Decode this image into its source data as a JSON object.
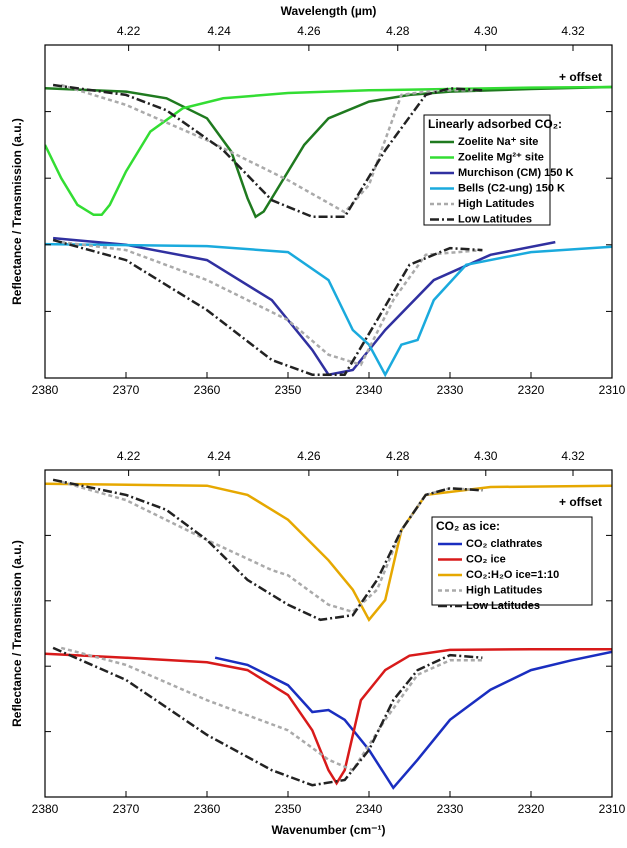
{
  "chart_data": [
    {
      "type": "line",
      "x2label": "Wavelength (µm)",
      "xlabel": null,
      "ylabel": "Reflectance / Transmission (a.u.)",
      "annotation": "+ offset",
      "legend_title": "Linearly adsorbed CO₂:",
      "xlim": [
        2380,
        2310
      ],
      "xticks": [
        2380,
        2370,
        2360,
        2350,
        2340,
        2330,
        2320,
        2310
      ],
      "x2lim": [
        4.2017,
        4.329
      ],
      "x2scale": "reciprocal",
      "x2ticks": [
        4.22,
        4.24,
        4.26,
        4.28,
        {
          "value": 4.3,
          "label": "4.30"
        },
        4.32
      ],
      "ylim": [
        0,
        5
      ],
      "yticks": [
        0,
        1,
        2,
        3,
        4
      ],
      "series": [
        {
          "name": "Zoelite Na⁺ site",
          "color": "#1f7a1f",
          "style": "solid",
          "x": [
            2380,
            2370,
            2365,
            2360,
            2357,
            2355,
            2354,
            2353,
            2351,
            2348,
            2345,
            2340,
            2335,
            2330,
            2320,
            2310
          ],
          "values": [
            4.35,
            4.3,
            4.2,
            3.9,
            3.4,
            2.7,
            2.42,
            2.5,
            2.9,
            3.5,
            3.9,
            4.15,
            4.25,
            4.3,
            4.34,
            4.37
          ]
        },
        {
          "name": "Zoelite Mg²⁺ site",
          "color": "#33dd33",
          "style": "solid",
          "x": [
            2380,
            2378,
            2376,
            2374,
            2373,
            2372,
            2370,
            2367,
            2363,
            2358,
            2350,
            2340,
            2330,
            2320,
            2310
          ],
          "values": [
            3.5,
            3.0,
            2.6,
            2.45,
            2.45,
            2.6,
            3.1,
            3.7,
            4.05,
            4.2,
            4.28,
            4.32,
            4.34,
            4.36,
            4.37
          ]
        },
        {
          "name": "Murchison (CM) 150 K",
          "color": "#3030a0",
          "style": "solid",
          "x": [
            2379,
            2370,
            2360,
            2352,
            2347,
            2345,
            2342,
            2338,
            2332,
            2325,
            2317
          ],
          "values": [
            2.1,
            2.0,
            1.77,
            1.17,
            0.42,
            0.05,
            0.12,
            0.72,
            1.47,
            1.85,
            2.04
          ]
        },
        {
          "name": "Bells (C2-ung) 150 K",
          "color": "#1aaadd",
          "style": "solid",
          "x": [
            2380,
            2360,
            2350,
            2345,
            2342,
            2340,
            2338,
            2336,
            2334,
            2332,
            2328,
            2320,
            2310
          ],
          "values": [
            2.01,
            1.98,
            1.89,
            1.47,
            0.72,
            0.5,
            0.05,
            0.5,
            0.57,
            1.17,
            1.7,
            1.89,
            1.97
          ]
        },
        {
          "name": "High Latitudes",
          "color": "#aaaaaa",
          "style": "dashed",
          "x": [
            2378,
            2370,
            2360,
            2350,
            2343,
            2340,
            2336,
            2333,
            2330,
            2326
          ],
          "values": [
            4.4,
            4.1,
            3.57,
            2.97,
            2.49,
            2.9,
            4.25,
            4.3,
            4.32,
            4.32
          ]
        },
        {
          "name": "Low Latitudes",
          "color": "#222222",
          "style": "dashdot",
          "x": [
            2379,
            2370,
            2365,
            2358,
            2352,
            2347,
            2343,
            2338,
            2333,
            2330,
            2326
          ],
          "values": [
            4.4,
            4.25,
            4.02,
            3.42,
            2.67,
            2.42,
            2.42,
            3.42,
            4.25,
            4.35,
            4.32
          ]
        },
        {
          "name": null,
          "color": "#aaaaaa",
          "style": "dashed",
          "x": [
            2378,
            2370,
            2360,
            2350,
            2345,
            2341,
            2337,
            2333,
            2326
          ],
          "values": [
            2.04,
            1.92,
            1.47,
            0.87,
            0.35,
            0.2,
            1.17,
            1.85,
            1.92
          ]
        },
        {
          "name": null,
          "color": "#222222",
          "style": "dashdot",
          "x": [
            2379,
            2370,
            2360,
            2352,
            2347,
            2343,
            2339,
            2335,
            2330,
            2326
          ],
          "values": [
            2.07,
            1.77,
            1.02,
            0.27,
            0.05,
            0.05,
            0.87,
            1.7,
            1.95,
            1.92
          ]
        }
      ]
    },
    {
      "type": "line",
      "x2label": null,
      "xlabel": "Wavenumber (cm⁻¹)",
      "ylabel": "Reflectance / Transmission (a.u.)",
      "annotation": "+ offset",
      "legend_title": "CO₂ as ice:",
      "xlim": [
        2380,
        2310
      ],
      "xticks": [
        2380,
        2370,
        2360,
        2350,
        2340,
        2330,
        2320,
        2310
      ],
      "x2lim": [
        4.2017,
        4.329
      ],
      "x2scale": "reciprocal",
      "x2ticks": [
        4.22,
        4.24,
        4.26,
        4.28,
        {
          "value": 4.3,
          "label": "4.30"
        },
        4.32
      ],
      "ylim": [
        0,
        5
      ],
      "yticks": [
        0,
        1,
        2,
        3,
        4
      ],
      "series": [
        {
          "name": "CO₂ clathrates",
          "color": "#1a2ec0",
          "style": "solid",
          "x": [
            2359,
            2355,
            2350,
            2347,
            2345,
            2343,
            2340,
            2337,
            2334,
            2330,
            2325,
            2320,
            2315,
            2310
          ],
          "values": [
            2.13,
            2.02,
            1.71,
            1.3,
            1.33,
            1.18,
            0.72,
            0.14,
            0.57,
            1.18,
            1.64,
            1.94,
            2.09,
            2.22
          ]
        },
        {
          "name": "CO₂ ice",
          "color": "#d81a1a",
          "style": "solid",
          "x": [
            2380,
            2370,
            2360,
            2355,
            2350,
            2347,
            2345,
            2344,
            2343,
            2341,
            2338,
            2335,
            2330,
            2320,
            2310
          ],
          "values": [
            2.19,
            2.13,
            2.06,
            1.94,
            1.56,
            1.02,
            0.41,
            0.21,
            0.41,
            1.48,
            1.94,
            2.16,
            2.25,
            2.26,
            2.26
          ]
        },
        {
          "name": "CO₂:H₂O ice=1:10",
          "color": "#e6a800",
          "style": "solid",
          "x": [
            2380,
            2360,
            2355,
            2350,
            2345,
            2342,
            2340,
            2338,
            2336,
            2333,
            2325,
            2310
          ],
          "values": [
            4.79,
            4.76,
            4.62,
            4.24,
            3.62,
            3.17,
            2.71,
            3.01,
            4.08,
            4.62,
            4.74,
            4.76
          ]
        },
        {
          "name": "High Latitudes",
          "color": "#aaaaaa",
          "style": "dashed",
          "x": [
            2378,
            2370,
            2360,
            2352,
            2350,
            2345,
            2342,
            2339,
            2336,
            2333,
            2330,
            2326
          ],
          "values": [
            4.82,
            4.54,
            3.93,
            3.47,
            3.39,
            2.94,
            2.83,
            3.17,
            4.08,
            4.62,
            4.72,
            4.69
          ]
        },
        {
          "name": "Low Latitudes",
          "color": "#222222",
          "style": "dashdot",
          "x": [
            2379,
            2370,
            2365,
            2360,
            2355,
            2350,
            2346,
            2342,
            2339,
            2336,
            2333,
            2330,
            2326
          ],
          "values": [
            4.85,
            4.62,
            4.39,
            3.93,
            3.32,
            2.94,
            2.71,
            2.78,
            3.32,
            4.08,
            4.62,
            4.72,
            4.69
          ]
        },
        {
          "name": null,
          "color": "#aaaaaa",
          "style": "dashed",
          "x": [
            2378,
            2370,
            2360,
            2350,
            2345,
            2342,
            2338,
            2334,
            2330,
            2326
          ],
          "values": [
            2.28,
            2.02,
            1.48,
            1.02,
            0.57,
            0.41,
            1.18,
            1.87,
            2.09,
            2.09
          ]
        },
        {
          "name": null,
          "color": "#222222",
          "style": "dashdot",
          "x": [
            2379,
            2370,
            2360,
            2352,
            2347,
            2343,
            2340,
            2337,
            2334,
            2330,
            2326
          ],
          "values": [
            2.28,
            1.79,
            0.95,
            0.41,
            0.18,
            0.26,
            0.72,
            1.48,
            1.94,
            2.17,
            2.13
          ]
        }
      ]
    }
  ]
}
